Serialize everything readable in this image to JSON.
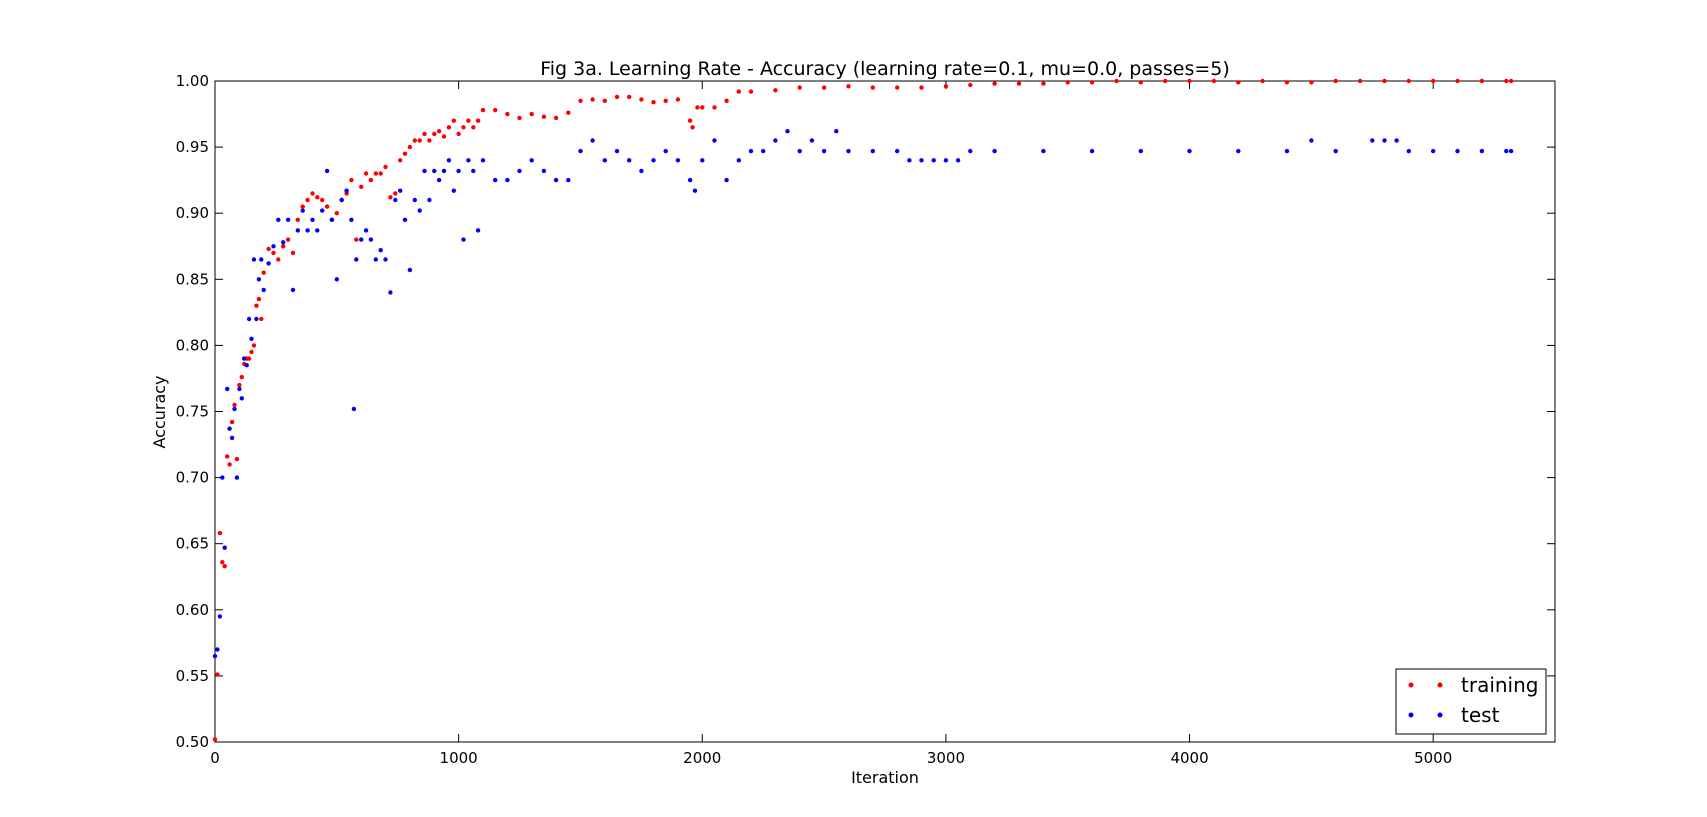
{
  "chart_data": {
    "type": "scatter",
    "title": "Fig 3a. Learning Rate - Accuracy (learning rate=0.1, mu=0.0, passes=5)",
    "xlabel": "Iteration",
    "ylabel": "Accuracy",
    "xlim": [
      0,
      5500
    ],
    "ylim": [
      0.5,
      1.0
    ],
    "xticks": [
      0,
      1000,
      2000,
      3000,
      4000,
      5000
    ],
    "xtick_labels": [
      "0",
      "1000",
      "2000",
      "3000",
      "4000",
      "5000"
    ],
    "yticks": [
      0.5,
      0.55,
      0.6,
      0.65,
      0.7,
      0.75,
      0.8,
      0.85,
      0.9,
      0.95,
      1.0
    ],
    "ytick_labels": [
      "0.50",
      "0.55",
      "0.60",
      "0.65",
      "0.70",
      "0.75",
      "0.80",
      "0.85",
      "0.90",
      "0.95",
      "1.00"
    ],
    "grid": false,
    "legend_position": "bottom-right",
    "series": [
      {
        "name": "training",
        "color": "#ff0000",
        "x": [
          0,
          10,
          20,
          30,
          40,
          50,
          60,
          70,
          80,
          90,
          100,
          110,
          120,
          130,
          140,
          150,
          160,
          170,
          180,
          190,
          200,
          220,
          240,
          260,
          280,
          300,
          320,
          340,
          360,
          380,
          400,
          420,
          440,
          460,
          480,
          500,
          520,
          540,
          560,
          580,
          600,
          620,
          640,
          660,
          680,
          700,
          720,
          740,
          760,
          780,
          800,
          820,
          840,
          860,
          880,
          900,
          920,
          940,
          960,
          980,
          1000,
          1020,
          1040,
          1060,
          1080,
          1100,
          1150,
          1200,
          1250,
          1300,
          1350,
          1400,
          1450,
          1500,
          1550,
          1600,
          1650,
          1700,
          1750,
          1800,
          1850,
          1900,
          1950,
          1960,
          1980,
          2000,
          2050,
          2100,
          2150,
          2200,
          2300,
          2400,
          2500,
          2600,
          2700,
          2800,
          2900,
          3000,
          3100,
          3200,
          3300,
          3400,
          3500,
          3600,
          3700,
          3800,
          3900,
          4000,
          4100,
          4200,
          4300,
          4400,
          4500,
          4600,
          4700,
          4800,
          4900,
          5000,
          5100,
          5200,
          5300,
          5320
        ],
        "y": [
          0.502,
          0.551,
          0.658,
          0.636,
          0.633,
          0.716,
          0.71,
          0.742,
          0.755,
          0.714,
          0.77,
          0.776,
          0.786,
          0.79,
          0.79,
          0.795,
          0.8,
          0.83,
          0.835,
          0.82,
          0.855,
          0.873,
          0.87,
          0.865,
          0.875,
          0.88,
          0.87,
          0.895,
          0.905,
          0.91,
          0.915,
          0.912,
          0.91,
          0.905,
          0.895,
          0.9,
          0.91,
          0.915,
          0.925,
          0.88,
          0.92,
          0.93,
          0.925,
          0.93,
          0.93,
          0.935,
          0.912,
          0.915,
          0.94,
          0.945,
          0.95,
          0.955,
          0.955,
          0.96,
          0.955,
          0.96,
          0.962,
          0.958,
          0.965,
          0.97,
          0.96,
          0.965,
          0.97,
          0.965,
          0.97,
          0.978,
          0.978,
          0.975,
          0.972,
          0.975,
          0.973,
          0.972,
          0.976,
          0.985,
          0.986,
          0.985,
          0.988,
          0.988,
          0.986,
          0.984,
          0.985,
          0.986,
          0.97,
          0.965,
          0.98,
          0.98,
          0.98,
          0.985,
          0.992,
          0.992,
          0.993,
          0.995,
          0.995,
          0.996,
          0.995,
          0.995,
          0.995,
          0.996,
          0.997,
          0.998,
          0.998,
          0.998,
          0.999,
          0.999,
          1.0,
          0.999,
          1.0,
          1.0,
          1.0,
          0.999,
          1.0,
          0.999,
          0.999,
          1.0,
          1.0,
          1.0,
          1.0,
          1.0,
          1.0,
          1.0,
          1.0,
          1.0
        ]
      },
      {
        "name": "test",
        "color": "#0000ff",
        "x": [
          0,
          10,
          20,
          30,
          40,
          50,
          60,
          70,
          80,
          90,
          100,
          110,
          120,
          130,
          140,
          150,
          160,
          170,
          180,
          190,
          200,
          220,
          240,
          260,
          280,
          300,
          320,
          340,
          360,
          380,
          400,
          420,
          440,
          460,
          480,
          500,
          520,
          540,
          560,
          570,
          580,
          600,
          620,
          640,
          660,
          680,
          700,
          720,
          740,
          760,
          780,
          800,
          820,
          840,
          860,
          880,
          900,
          920,
          940,
          960,
          980,
          1000,
          1020,
          1040,
          1060,
          1080,
          1100,
          1150,
          1200,
          1250,
          1300,
          1350,
          1400,
          1450,
          1500,
          1550,
          1600,
          1650,
          1700,
          1750,
          1800,
          1850,
          1900,
          1950,
          1970,
          2000,
          2050,
          2100,
          2150,
          2200,
          2250,
          2300,
          2350,
          2400,
          2450,
          2500,
          2550,
          2600,
          2700,
          2800,
          2850,
          2900,
          2950,
          3000,
          3050,
          3100,
          3200,
          3400,
          3600,
          3800,
          4000,
          4200,
          4400,
          4500,
          4600,
          4750,
          4800,
          4850,
          4900,
          5000,
          5100,
          5200,
          5300,
          5320
        ],
        "y": [
          0.565,
          0.57,
          0.595,
          0.7,
          0.647,
          0.767,
          0.737,
          0.73,
          0.752,
          0.7,
          0.767,
          0.76,
          0.79,
          0.785,
          0.82,
          0.805,
          0.865,
          0.82,
          0.85,
          0.865,
          0.842,
          0.862,
          0.875,
          0.895,
          0.878,
          0.895,
          0.842,
          0.887,
          0.902,
          0.887,
          0.895,
          0.887,
          0.902,
          0.932,
          0.895,
          0.85,
          0.91,
          0.917,
          0.895,
          0.752,
          0.865,
          0.88,
          0.887,
          0.88,
          0.865,
          0.872,
          0.865,
          0.84,
          0.91,
          0.917,
          0.895,
          0.857,
          0.91,
          0.902,
          0.932,
          0.91,
          0.932,
          0.925,
          0.932,
          0.94,
          0.917,
          0.932,
          0.88,
          0.94,
          0.932,
          0.887,
          0.94,
          0.925,
          0.925,
          0.932,
          0.94,
          0.932,
          0.925,
          0.925,
          0.947,
          0.955,
          0.94,
          0.947,
          0.94,
          0.932,
          0.94,
          0.947,
          0.94,
          0.925,
          0.917,
          0.94,
          0.955,
          0.925,
          0.94,
          0.947,
          0.947,
          0.955,
          0.962,
          0.947,
          0.955,
          0.947,
          0.962,
          0.947,
          0.947,
          0.947,
          0.94,
          0.94,
          0.94,
          0.94,
          0.94,
          0.947,
          0.947,
          0.947,
          0.947,
          0.947,
          0.947,
          0.947,
          0.947,
          0.955,
          0.947,
          0.955,
          0.955,
          0.955,
          0.947,
          0.947,
          0.947,
          0.947,
          0.947,
          0.947
        ]
      }
    ]
  }
}
